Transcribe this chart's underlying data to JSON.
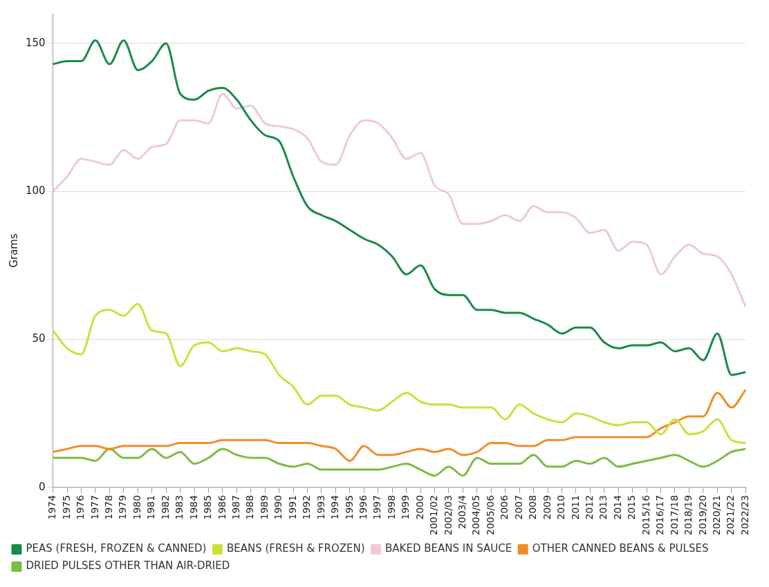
{
  "chart_data": {
    "type": "line",
    "ylabel": "Grams",
    "categories": [
      "1974",
      "1975",
      "1976",
      "1977",
      "1978",
      "1979",
      "1980",
      "1981",
      "1982",
      "1983",
      "1984",
      "1985",
      "1986",
      "1987",
      "1988",
      "1989",
      "1990",
      "1991",
      "1992",
      "1993",
      "1994",
      "1995",
      "1996",
      "1997",
      "1998",
      "1999",
      "2000",
      "2001/02",
      "2002/03",
      "2003/4",
      "2004/05",
      "2005/06",
      "2006",
      "2007",
      "2008",
      "2009",
      "2010",
      "2011",
      "2012",
      "2013",
      "2014",
      "2015",
      "2015/16",
      "2016/17",
      "2017/18",
      "2018/19",
      "2019/20",
      "2020/21",
      "2021/22",
      "2022/23"
    ],
    "series": [
      {
        "name": "PEAS (FRESH, FROZEN & CANNED)",
        "color": "#1a8a4a",
        "values": [
          143,
          144,
          144,
          151,
          143,
          151,
          141,
          144,
          150,
          133,
          131,
          134,
          135,
          131,
          124,
          119,
          117,
          105,
          95,
          92,
          90,
          87,
          84,
          82,
          78,
          72,
          75,
          67,
          65,
          65,
          60,
          60,
          59,
          59,
          57,
          55,
          52,
          54,
          54,
          49,
          47,
          48,
          48,
          49,
          46,
          47,
          43,
          52,
          38,
          39
        ]
      },
      {
        "name": "BEANS (FRESH & FROZEN)",
        "color": "#cfdf3a",
        "values": [
          53,
          47,
          45,
          58,
          60,
          58,
          62,
          53,
          52,
          41,
          48,
          49,
          46,
          47,
          46,
          45,
          38,
          34,
          28,
          31,
          31,
          28,
          27,
          26,
          29,
          32,
          29,
          28,
          28,
          27,
          27,
          27,
          23,
          28,
          25,
          23,
          22,
          25,
          24,
          22,
          21,
          22,
          22,
          18,
          23,
          18,
          19,
          23,
          16,
          15
        ]
      },
      {
        "name": "BAKED BEANS IN SAUCE",
        "color": "#f1c9d5",
        "values": [
          100,
          105,
          111,
          110,
          109,
          114,
          111,
          115,
          116,
          124,
          124,
          123,
          133,
          128,
          129,
          123,
          122,
          121,
          118,
          110,
          109,
          119,
          124,
          123,
          118,
          111,
          113,
          102,
          99,
          89,
          89,
          90,
          92,
          90,
          95,
          93,
          93,
          91,
          86,
          87,
          80,
          83,
          82,
          72,
          78,
          82,
          79,
          78,
          72,
          61
        ]
      },
      {
        "name": "OTHER CANNED BEANS & PULSES",
        "color": "#f28c28",
        "values": [
          12,
          13,
          14,
          14,
          13,
          14,
          14,
          14,
          14,
          15,
          15,
          15,
          16,
          16,
          16,
          16,
          15,
          15,
          15,
          14,
          13,
          9,
          14,
          11,
          11,
          12,
          13,
          12,
          13,
          11,
          12,
          15,
          15,
          14,
          14,
          16,
          16,
          17,
          17,
          17,
          17,
          17,
          17,
          20,
          22,
          24,
          24,
          32,
          27,
          33
        ]
      },
      {
        "name": "DRIED PULSES OTHER THAN AIR-DRIED",
        "color": "#7dbb42",
        "values": [
          10,
          10,
          10,
          9,
          13,
          10,
          10,
          13,
          10,
          12,
          8,
          10,
          13,
          11,
          10,
          10,
          8,
          7,
          8,
          6,
          6,
          6,
          6,
          6,
          7,
          8,
          6,
          4,
          7,
          4,
          10,
          8,
          8,
          8,
          11,
          7,
          7,
          9,
          8,
          10,
          7,
          8,
          9,
          10,
          11,
          9,
          7,
          9,
          12,
          13
        ]
      }
    ],
    "ylim": [
      0,
      160
    ],
    "yticks": [
      0,
      50,
      100,
      150
    ],
    "grid": "y",
    "legend": "bottom left",
    "marker": "none",
    "line_style": "solid"
  }
}
